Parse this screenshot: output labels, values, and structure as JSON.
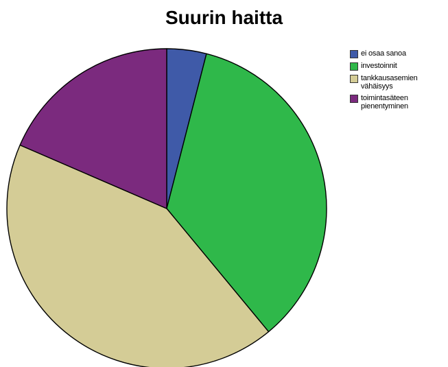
{
  "chart_data": {
    "type": "pie",
    "title": "Suurin haitta",
    "start_angle_deg": 0,
    "direction": "clockwise",
    "legend_position": "top-right",
    "slices": [
      {
        "label": "ei osaa sanoa",
        "value": 4.0,
        "color": "#3f5aa8"
      },
      {
        "label": "investoinnit",
        "value": 35.0,
        "color": "#2fb84a"
      },
      {
        "label": "tankkausasemien vähäisyys",
        "value": 42.5,
        "color": "#d4cc96"
      },
      {
        "label": "toimintasäteen pienentyminen",
        "value": 18.5,
        "color": "#7b2a7e"
      }
    ]
  }
}
